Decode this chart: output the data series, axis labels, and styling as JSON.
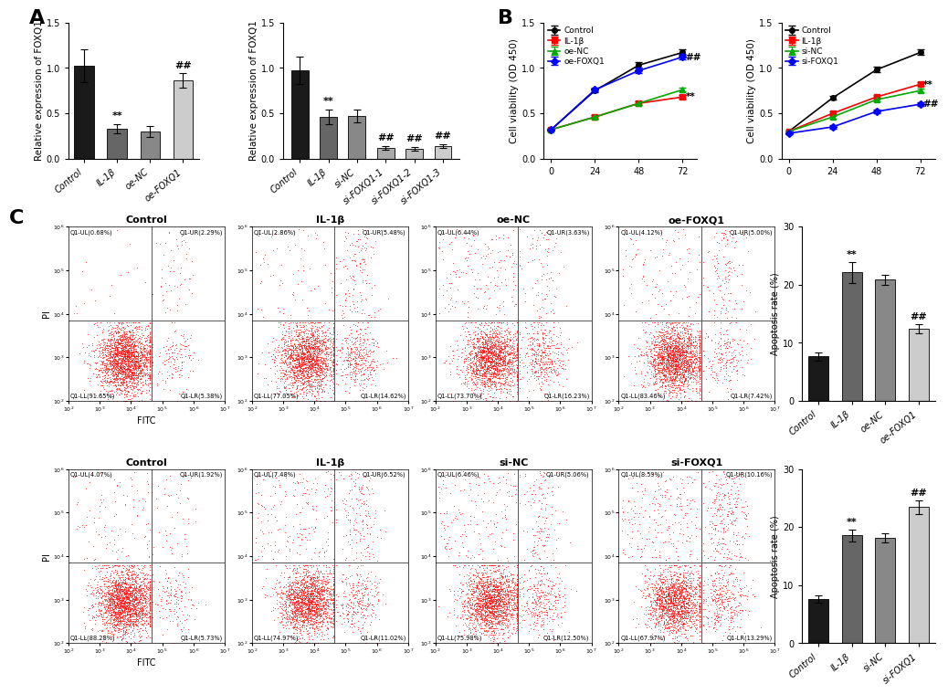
{
  "panel_A_left": {
    "categories": [
      "Control",
      "IL-1β",
      "oe-NC",
      "oe-FOXQ1"
    ],
    "values": [
      1.02,
      0.33,
      0.3,
      0.86
    ],
    "errors": [
      0.18,
      0.05,
      0.06,
      0.08
    ],
    "colors": [
      "#1a1a1a",
      "#666666",
      "#888888",
      "#cccccc"
    ],
    "ylabel": "Relative expression of FOXQ1",
    "ylim": [
      0,
      1.5
    ],
    "yticks": [
      0.0,
      0.5,
      1.0,
      1.5
    ],
    "sig_labels": {
      "IL-1β": "**",
      "oe-FOXQ1": "##"
    }
  },
  "panel_A_right": {
    "categories": [
      "Control",
      "IL-1β",
      "si-NC",
      "si-FOXQ1-1",
      "si-FOXQ1-2",
      "si-FOXQ1-3"
    ],
    "values": [
      0.97,
      0.46,
      0.47,
      0.12,
      0.11,
      0.14
    ],
    "errors": [
      0.15,
      0.08,
      0.07,
      0.02,
      0.02,
      0.02
    ],
    "colors": [
      "#1a1a1a",
      "#666666",
      "#888888",
      "#aaaaaa",
      "#bbbbbb",
      "#cccccc"
    ],
    "ylabel": "Relative expression of FOXQ1",
    "ylim": [
      0,
      1.5
    ],
    "yticks": [
      0.0,
      0.5,
      1.0,
      1.5
    ],
    "sig_labels": {
      "IL-1β": "**",
      "si-FOXQ1-1": "##",
      "si-FOXQ1-2": "##",
      "si-FOXQ1-3": "##"
    }
  },
  "panel_B_left": {
    "x": [
      0,
      24,
      48,
      72
    ],
    "lines": {
      "Control": {
        "values": [
          0.32,
          0.75,
          1.03,
          1.17
        ],
        "errors": [
          0.01,
          0.02,
          0.03,
          0.03
        ],
        "color": "#000000",
        "marker": "o"
      },
      "IL-1β": {
        "values": [
          0.32,
          0.46,
          0.61,
          0.68
        ],
        "errors": [
          0.01,
          0.02,
          0.02,
          0.02
        ],
        "color": "#ff0000",
        "marker": "s"
      },
      "oe-NC": {
        "values": [
          0.32,
          0.46,
          0.61,
          0.76
        ],
        "errors": [
          0.01,
          0.02,
          0.02,
          0.02
        ],
        "color": "#00aa00",
        "marker": "^"
      },
      "oe-FOXQ1": {
        "values": [
          0.32,
          0.76,
          0.97,
          1.12
        ],
        "errors": [
          0.01,
          0.02,
          0.03,
          0.03
        ],
        "color": "#0000ff",
        "marker": "D"
      }
    },
    "ylabel": "Cell viability (OD 450)",
    "ylim": [
      0,
      1.5
    ],
    "yticks": [
      0.0,
      0.5,
      1.0,
      1.5
    ],
    "sig_right": [
      {
        "line": "IL-1β",
        "label": "**"
      },
      {
        "line": "oe-FOXQ1",
        "label": "##"
      }
    ]
  },
  "panel_B_right": {
    "x": [
      0,
      24,
      48,
      72
    ],
    "lines": {
      "Control": {
        "values": [
          0.3,
          0.67,
          0.98,
          1.17
        ],
        "errors": [
          0.01,
          0.02,
          0.03,
          0.03
        ],
        "color": "#000000",
        "marker": "o"
      },
      "IL-1β": {
        "values": [
          0.3,
          0.5,
          0.68,
          0.82
        ],
        "errors": [
          0.01,
          0.02,
          0.02,
          0.02
        ],
        "color": "#ff0000",
        "marker": "s"
      },
      "si-NC": {
        "values": [
          0.3,
          0.46,
          0.65,
          0.75
        ],
        "errors": [
          0.01,
          0.02,
          0.02,
          0.02
        ],
        "color": "#00aa00",
        "marker": "^"
      },
      "si-FOXQ1": {
        "values": [
          0.28,
          0.35,
          0.52,
          0.6
        ],
        "errors": [
          0.01,
          0.02,
          0.02,
          0.02
        ],
        "color": "#0000ff",
        "marker": "D"
      }
    },
    "ylabel": "Cell viability (OD 450)",
    "ylim": [
      0,
      1.5
    ],
    "yticks": [
      0.0,
      0.5,
      1.0,
      1.5
    ],
    "sig_right": [
      {
        "line": "IL-1β",
        "label": "**"
      },
      {
        "line": "si-FOXQ1",
        "label": "##"
      }
    ]
  },
  "panel_C_top_bar": {
    "categories": [
      "Control",
      "IL-1β",
      "oe-NC",
      "oe-FOXQ1"
    ],
    "values": [
      7.67,
      22.1,
      20.85,
      12.42
    ],
    "errors": [
      0.7,
      1.8,
      0.9,
      0.8
    ],
    "colors": [
      "#1a1a1a",
      "#666666",
      "#888888",
      "#cccccc"
    ],
    "ylabel": "Apoptosis rate (%)",
    "ylim": [
      0,
      30
    ],
    "yticks": [
      0,
      10,
      20,
      30
    ],
    "sig_labels": {
      "IL-1β": "**",
      "oe-FOXQ1": "##"
    }
  },
  "panel_C_bottom_bar": {
    "categories": [
      "Control",
      "IL-1β",
      "si-NC",
      "si-FOXQ1"
    ],
    "values": [
      7.65,
      18.54,
      18.09,
      23.45
    ],
    "errors": [
      0.6,
      1.0,
      0.8,
      1.2
    ],
    "colors": [
      "#1a1a1a",
      "#666666",
      "#888888",
      "#cccccc"
    ],
    "ylabel": "Apoptosis rate (%)",
    "ylim": [
      0,
      30
    ],
    "yticks": [
      0,
      10,
      20,
      30
    ],
    "sig_labels": {
      "IL-1β": "**",
      "si-FOXQ1": "##"
    }
  },
  "flow_top": [
    {
      "title": "Control",
      "Q1_UL": "0.68%",
      "Q1_UR": "2.29%",
      "Q1_LL": "91.65%",
      "Q1_LR": "5.38%"
    },
    {
      "title": "IL-1β",
      "Q1_UL": "2.86%",
      "Q1_UR": "5.48%",
      "Q1_LL": "77.05%",
      "Q1_LR": "14.62%"
    },
    {
      "title": "oe-NC",
      "Q1_UL": "6.44%",
      "Q1_UR": "3.63%",
      "Q1_LL": "73.70%",
      "Q1_LR": "16.23%"
    },
    {
      "title": "oe-FOXQ1",
      "Q1_UL": "4.12%",
      "Q1_UR": "5.00%",
      "Q1_LL": "83.46%",
      "Q1_LR": "7.42%"
    }
  ],
  "flow_bottom": [
    {
      "title": "Control",
      "Q1_UL": "4.07%",
      "Q1_UR": "1.92%",
      "Q1_LL": "88.28%",
      "Q1_LR": "5.73%"
    },
    {
      "title": "IL-1β",
      "Q1_UL": "7.48%",
      "Q1_UR": "6.52%",
      "Q1_LL": "74.97%",
      "Q1_LR": "11.02%"
    },
    {
      "title": "si-NC",
      "Q1_UL": "6.46%",
      "Q1_UR": "5.06%",
      "Q1_LL": "75.98%",
      "Q1_LR": "12.50%"
    },
    {
      "title": "si-FOXQ1",
      "Q1_UL": "8.59%",
      "Q1_UR": "10.16%",
      "Q1_LL": "67.97%",
      "Q1_LR": "13.29%"
    }
  ],
  "bg_color": "#ffffff"
}
